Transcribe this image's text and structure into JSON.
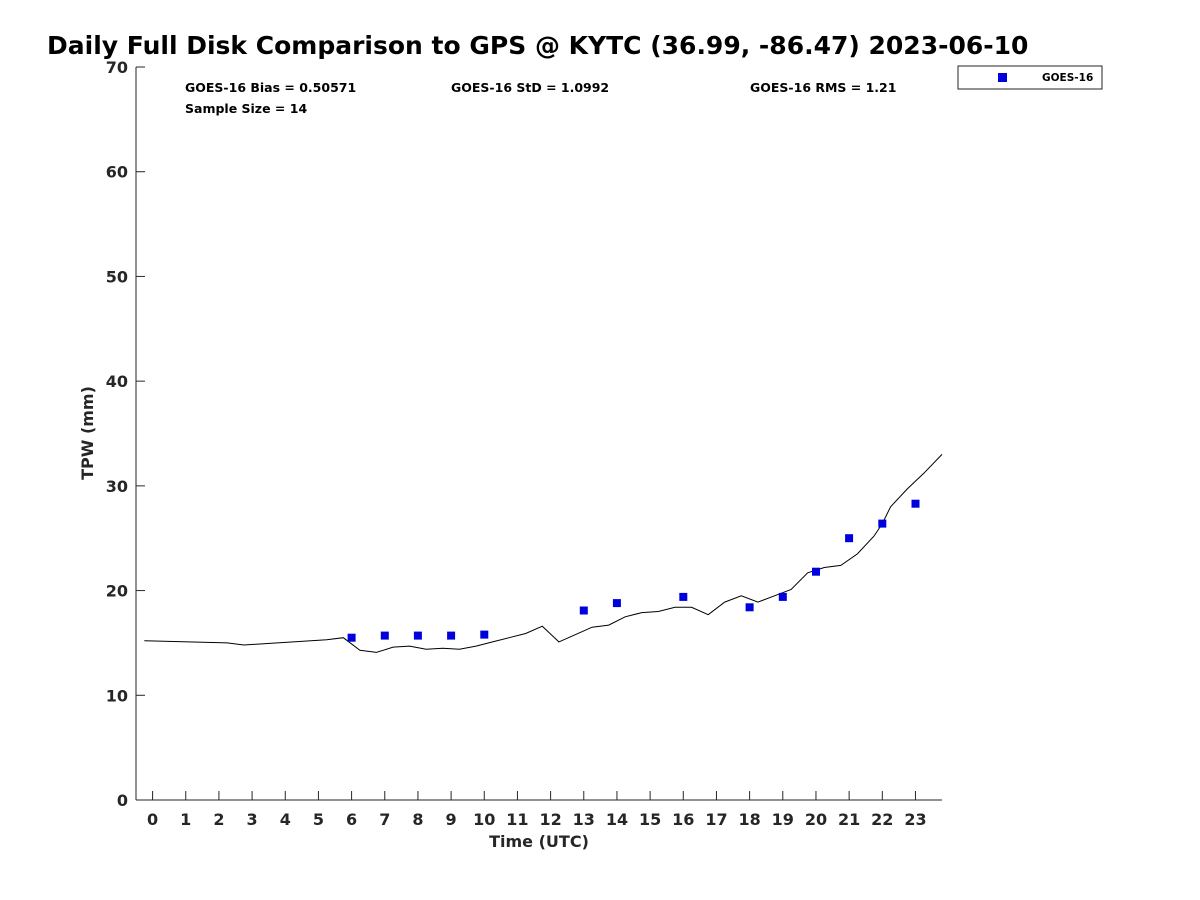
{
  "chart_data": {
    "type": "scatter",
    "title": "Daily Full Disk Comparison to GPS @ KYTC (36.99, -86.47) 2023-06-10",
    "xlabel": "Time (UTC)",
    "ylabel": "TPW (mm)",
    "xlim": [
      -0.5,
      23.8
    ],
    "ylim": [
      0,
      70
    ],
    "x_ticks": [
      0,
      1,
      2,
      3,
      4,
      5,
      6,
      7,
      8,
      9,
      10,
      11,
      12,
      13,
      14,
      15,
      16,
      17,
      18,
      19,
      20,
      21,
      22,
      23
    ],
    "y_ticks": [
      0,
      10,
      20,
      30,
      40,
      50,
      60,
      70
    ],
    "grid": false,
    "legend": {
      "position": "top-right",
      "entries": [
        "GOES-16"
      ]
    },
    "stats": {
      "bias": "GOES-16 Bias = 0.50571",
      "std": "GOES-16 StD = 1.0992",
      "rms": "GOES-16 RMS = 1.21",
      "sample_size": "Sample Size = 14"
    },
    "series": [
      {
        "name": "GOES-16",
        "kind": "scatter",
        "color": "#0000dd",
        "x": [
          6,
          7,
          8,
          9,
          10,
          13,
          14,
          16,
          18,
          19,
          20,
          21,
          22,
          23
        ],
        "y": [
          15.5,
          15.7,
          15.7,
          15.7,
          15.8,
          18.1,
          18.8,
          19.4,
          18.4,
          19.4,
          21.8,
          25.0,
          26.4,
          28.3
        ]
      },
      {
        "kind": "line",
        "color": "#000000",
        "x": [
          -0.25,
          2.25,
          2.75,
          5.25,
          5.75,
          6.25,
          6.75,
          7.25,
          7.75,
          8.25,
          8.75,
          9.25,
          9.75,
          10.25,
          10.75,
          11.25,
          11.75,
          12.25,
          12.75,
          13.25,
          13.75,
          14.25,
          14.75,
          15.25,
          15.75,
          16.25,
          16.75,
          17.25,
          17.75,
          18.25,
          18.75,
          19.25,
          19.75,
          20.25,
          20.75,
          21.25,
          21.75,
          22.0,
          22.25,
          22.75,
          23.25,
          23.8
        ],
        "y": [
          15.2,
          15.0,
          14.8,
          15.3,
          15.5,
          14.3,
          14.1,
          14.6,
          14.7,
          14.4,
          14.5,
          14.4,
          14.7,
          15.1,
          15.5,
          15.9,
          16.6,
          15.1,
          15.8,
          16.5,
          16.7,
          17.5,
          17.9,
          18.0,
          18.4,
          18.4,
          17.7,
          18.9,
          19.5,
          18.9,
          19.5,
          20.1,
          21.7,
          22.2,
          22.4,
          23.5,
          25.2,
          26.4,
          28.0,
          29.7,
          31.2,
          33.0
        ]
      }
    ]
  }
}
